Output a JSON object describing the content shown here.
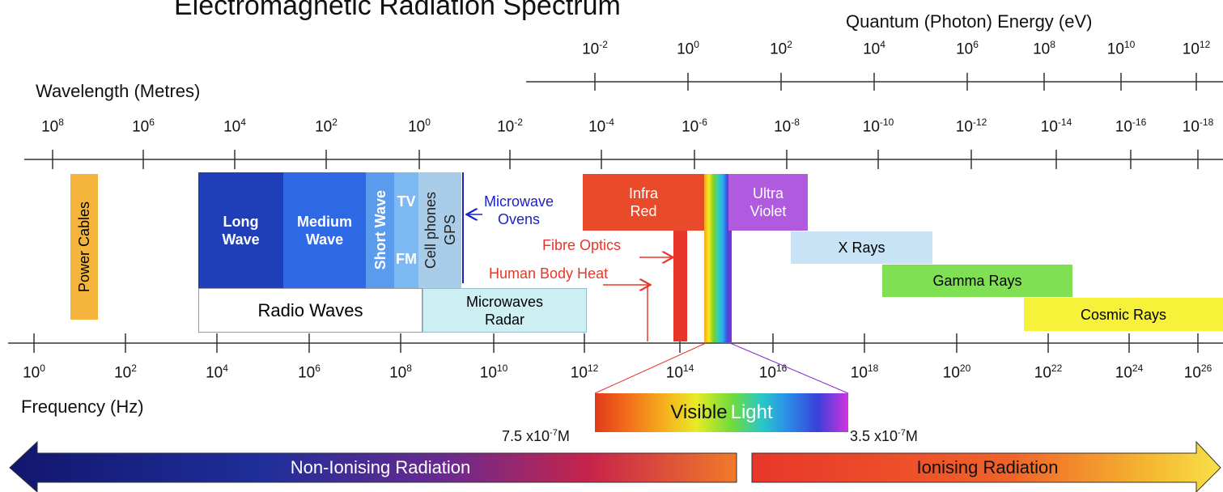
{
  "title": "Electromagnetic Radiation Spectrum",
  "energy_axis": {
    "title": "Quantum (Photon) Energy (eV)",
    "ticks": [
      {
        "base": "10",
        "exp": "-2"
      },
      {
        "base": "10",
        "exp": "0"
      },
      {
        "base": "10",
        "exp": "2"
      },
      {
        "base": "10",
        "exp": "4"
      },
      {
        "base": "10",
        "exp": "6"
      },
      {
        "base": "10",
        "exp": "8"
      },
      {
        "base": "10",
        "exp": "10"
      },
      {
        "base": "10",
        "exp": "12"
      }
    ]
  },
  "wavelength_axis": {
    "title": "Wavelength (Metres)",
    "ticks": [
      {
        "base": "10",
        "exp": "8"
      },
      {
        "base": "10",
        "exp": "6"
      },
      {
        "base": "10",
        "exp": "4"
      },
      {
        "base": "10",
        "exp": "2"
      },
      {
        "base": "10",
        "exp": "0"
      },
      {
        "base": "10",
        "exp": "-2"
      },
      {
        "base": "10",
        "exp": "-4"
      },
      {
        "base": "10",
        "exp": "-6"
      },
      {
        "base": "10",
        "exp": "-8"
      },
      {
        "base": "10",
        "exp": "-10"
      },
      {
        "base": "10",
        "exp": "-12"
      },
      {
        "base": "10",
        "exp": "-14"
      },
      {
        "base": "10",
        "exp": "-16"
      },
      {
        "base": "10",
        "exp": "-18"
      }
    ]
  },
  "frequency_axis": {
    "title": "Frequency (Hz)",
    "ticks": [
      {
        "base": "10",
        "exp": "0"
      },
      {
        "base": "10",
        "exp": "2"
      },
      {
        "base": "10",
        "exp": "4"
      },
      {
        "base": "10",
        "exp": "6"
      },
      {
        "base": "10",
        "exp": "8"
      },
      {
        "base": "10",
        "exp": "10"
      },
      {
        "base": "10",
        "exp": "12"
      },
      {
        "base": "10",
        "exp": "14"
      },
      {
        "base": "10",
        "exp": "16"
      },
      {
        "base": "10",
        "exp": "18"
      },
      {
        "base": "10",
        "exp": "20"
      },
      {
        "base": "10",
        "exp": "22"
      },
      {
        "base": "10",
        "exp": "24"
      },
      {
        "base": "10",
        "exp": "26"
      }
    ]
  },
  "bands": {
    "power_cables": "Power Cables",
    "long_wave": "Long\nWave",
    "medium_wave": "Medium\nWave",
    "short_wave": "Short Wave",
    "tv": "TV",
    "fm": "FM",
    "cell_phones": "Cell phones",
    "gps": "GPS",
    "radio_waves": "Radio Waves",
    "microwaves_radar": "Microwaves\nRadar",
    "infra_red": "Infra\nRed",
    "ultra_violet": "Ultra\nViolet",
    "x_rays": "X Rays",
    "gamma_rays": "Gamma Rays",
    "cosmic_rays": "Cosmic Rays",
    "visible_light_a": "Visible ",
    "visible_light_b": "Light"
  },
  "annotations": {
    "microwave_ovens": "Microwave\nOvens",
    "fibre_optics": "Fibre Optics",
    "human_body_heat": "Human Body Heat",
    "red_limit": "7.5 x10",
    "red_limit_exp": "-7",
    "red_limit_unit": "M",
    "violet_limit": "3.5 x10",
    "violet_limit_exp": "-7",
    "violet_limit_unit": "M"
  },
  "radiation": {
    "non_ionising": "Non-Ionising Radiation",
    "ionising": "Ionising Radiation"
  },
  "colors": {
    "long_wave": "#1e3fb8",
    "medium_wave": "#2f6ae6",
    "short_wave": "#5b9bee",
    "tv_fm": "#7cb8f2",
    "cell_phones": "#a9cde8",
    "microwaves_radar": "#cdeff2",
    "infra_red": "#e84a2a",
    "ultra_violet": "#b05ae0",
    "x_rays": "#c8e2f6",
    "gamma_rays": "#7fe054",
    "cosmic_rays": "#f6f23a",
    "power_cables": "#f5b53d",
    "annotation_red": "#e8372a",
    "annotation_blue": "#1d22c8"
  }
}
